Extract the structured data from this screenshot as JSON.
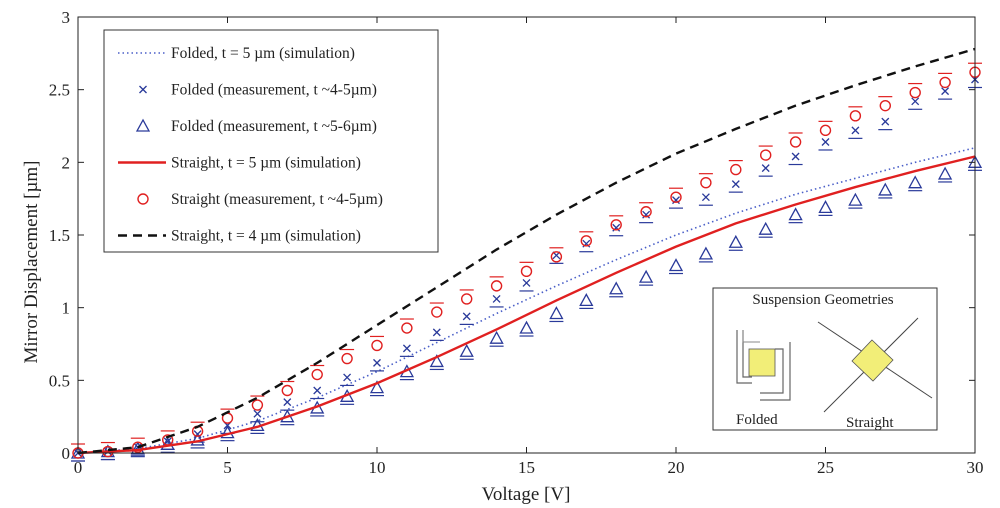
{
  "chart_data": {
    "type": "line",
    "xlabel": "Voltage [V]",
    "ylabel": "Mirror Displacement [µm]",
    "xlim": [
      0,
      30
    ],
    "ylim": [
      0,
      3
    ],
    "xticks": [
      0,
      5,
      10,
      15,
      20,
      25,
      30
    ],
    "yticks": [
      0,
      0.5,
      1,
      1.5,
      2,
      2.5,
      3
    ],
    "xtick_labels": [
      "0",
      "5",
      "10",
      "15",
      "20",
      "25",
      "30"
    ],
    "ytick_labels": [
      "0",
      "0.5",
      "1",
      "1.5",
      "2",
      "2.5",
      "3"
    ],
    "grid": false,
    "legend_position": "top-left",
    "series": [
      {
        "name": "Folded, t = 5 µm  (simulation)",
        "style": "dotted-line",
        "color": "#4a5fc8",
        "x": [
          0,
          2,
          4,
          6,
          8,
          10,
          12,
          14,
          16,
          18,
          20,
          22,
          24,
          26,
          28,
          30
        ],
        "values": [
          0,
          0.03,
          0.1,
          0.22,
          0.38,
          0.56,
          0.76,
          0.96,
          1.15,
          1.33,
          1.5,
          1.65,
          1.78,
          1.89,
          2.0,
          2.1
        ]
      },
      {
        "name": "Folded (measurement, t ~4-5µm)",
        "style": "x-marker",
        "color": "#2a3a9a",
        "x": [
          0,
          1,
          2,
          3,
          4,
          5,
          6,
          7,
          8,
          9,
          10,
          11,
          12,
          13,
          14,
          15,
          16,
          17,
          18,
          19,
          20,
          21,
          22,
          23,
          24,
          25,
          26,
          27,
          28,
          29,
          30
        ],
        "values": [
          0,
          0.01,
          0.04,
          0.08,
          0.13,
          0.19,
          0.27,
          0.35,
          0.43,
          0.52,
          0.62,
          0.72,
          0.83,
          0.94,
          1.06,
          1.17,
          1.36,
          1.44,
          1.55,
          1.64,
          1.74,
          1.76,
          1.85,
          1.96,
          2.04,
          2.14,
          2.22,
          2.28,
          2.42,
          2.49,
          2.57
        ]
      },
      {
        "name": "Folded (measurement, t ~5-6µm)",
        "style": "triangle-marker",
        "color": "#2a3a9a",
        "x": [
          0,
          1,
          2,
          3,
          4,
          5,
          6,
          7,
          8,
          9,
          10,
          11,
          12,
          13,
          14,
          15,
          16,
          17,
          18,
          19,
          20,
          21,
          22,
          23,
          24,
          25,
          26,
          27,
          28,
          29,
          30
        ],
        "values": [
          0,
          0.01,
          0.03,
          0.06,
          0.09,
          0.14,
          0.19,
          0.25,
          0.31,
          0.39,
          0.45,
          0.56,
          0.63,
          0.7,
          0.79,
          0.86,
          0.96,
          1.05,
          1.13,
          1.21,
          1.29,
          1.37,
          1.45,
          1.54,
          1.64,
          1.69,
          1.74,
          1.81,
          1.86,
          1.92,
          2.0
        ]
      },
      {
        "name": "Straight, t = 5 µm  (simulation)",
        "style": "solid-line",
        "color": "#e02020",
        "x": [
          0,
          2,
          4,
          6,
          8,
          10,
          12,
          14,
          16,
          18,
          20,
          22,
          24,
          26,
          28,
          30
        ],
        "values": [
          0,
          0.02,
          0.08,
          0.18,
          0.32,
          0.48,
          0.66,
          0.85,
          1.05,
          1.24,
          1.42,
          1.58,
          1.71,
          1.83,
          1.94,
          2.04
        ]
      },
      {
        "name": "Straight (measurement, t ~4-5µm)",
        "style": "circle-marker",
        "color": "#e02020",
        "x": [
          0,
          1,
          2,
          3,
          4,
          5,
          6,
          7,
          8,
          9,
          10,
          11,
          12,
          13,
          14,
          15,
          16,
          17,
          18,
          19,
          20,
          21,
          22,
          23,
          24,
          25,
          26,
          27,
          28,
          29,
          30
        ],
        "values": [
          0,
          0.01,
          0.04,
          0.09,
          0.15,
          0.24,
          0.33,
          0.43,
          0.54,
          0.65,
          0.74,
          0.86,
          0.97,
          1.06,
          1.15,
          1.25,
          1.35,
          1.46,
          1.57,
          1.66,
          1.76,
          1.86,
          1.95,
          2.05,
          2.14,
          2.22,
          2.32,
          2.39,
          2.48,
          2.55,
          2.62
        ]
      },
      {
        "name": "Straight, t = 4 µm  (simulation)",
        "style": "dashed-line",
        "color": "#111111",
        "x": [
          0,
          2,
          4,
          6,
          8,
          10,
          12,
          14,
          16,
          18,
          20,
          22,
          24,
          26,
          28,
          30
        ],
        "values": [
          0,
          0.04,
          0.18,
          0.38,
          0.62,
          0.88,
          1.14,
          1.4,
          1.64,
          1.86,
          2.06,
          2.23,
          2.39,
          2.53,
          2.66,
          2.78
        ]
      }
    ],
    "inset": {
      "title": "Suspension Geometries",
      "labels": [
        "Folded",
        "Straight"
      ]
    }
  },
  "colors": {
    "mirror_fill": "#f2ee78",
    "axis": "#222222"
  }
}
